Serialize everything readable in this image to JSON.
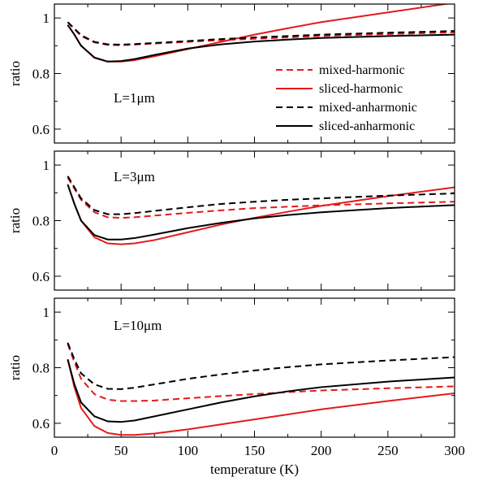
{
  "chart_data": {
    "type": "line",
    "xlabel": "temperature (K)",
    "ylabel": "ratio",
    "xlim": [
      0,
      300
    ],
    "x_ticks": [
      "0",
      "50",
      "100",
      "150",
      "200",
      "250",
      "300"
    ],
    "legend": {
      "placement": "right",
      "entries": [
        {
          "name": "mixed-harmonic",
          "color": "#e41a1c",
          "dash": true
        },
        {
          "name": "sliced-harmonic",
          "color": "#e41a1c",
          "dash": false
        },
        {
          "name": "mixed-anharmonic",
          "color": "#000000",
          "dash": true
        },
        {
          "name": "sliced-anharmonic",
          "color": "#000000",
          "dash": false
        }
      ]
    },
    "panels": [
      {
        "label": "L=1μm",
        "ylim": [
          0.55,
          1.05
        ],
        "y_ticks": [
          "0.6",
          "0.8",
          "1"
        ],
        "series": [
          {
            "name": "mixed-harmonic",
            "x": [
              10,
              15,
              20,
              30,
              40,
              50,
              60,
              75,
              100,
              125,
              150,
              175,
              200,
              250,
              300
            ],
            "y": [
              0.985,
              0.96,
              0.935,
              0.912,
              0.903,
              0.902,
              0.904,
              0.908,
              0.914,
              0.92,
              0.925,
              0.93,
              0.935,
              0.942,
              0.948
            ]
          },
          {
            "name": "sliced-harmonic",
            "x": [
              10,
              15,
              20,
              30,
              40,
              50,
              60,
              75,
              100,
              125,
              150,
              175,
              200,
              250,
              300
            ],
            "y": [
              0.975,
              0.94,
              0.9,
              0.858,
              0.843,
              0.843,
              0.848,
              0.862,
              0.888,
              0.914,
              0.94,
              0.963,
              0.985,
              1.02,
              1.055
            ]
          },
          {
            "name": "mixed-anharmonic",
            "x": [
              10,
              15,
              20,
              30,
              40,
              50,
              60,
              75,
              100,
              125,
              150,
              175,
              200,
              250,
              300
            ],
            "y": [
              0.985,
              0.962,
              0.938,
              0.914,
              0.905,
              0.904,
              0.906,
              0.91,
              0.917,
              0.924,
              0.93,
              0.935,
              0.94,
              0.947,
              0.953
            ]
          },
          {
            "name": "sliced-anharmonic",
            "x": [
              10,
              15,
              20,
              30,
              40,
              50,
              60,
              75,
              100,
              125,
              150,
              175,
              200,
              250,
              300
            ],
            "y": [
              0.975,
              0.94,
              0.9,
              0.857,
              0.843,
              0.845,
              0.852,
              0.867,
              0.89,
              0.905,
              0.915,
              0.922,
              0.928,
              0.935,
              0.94
            ]
          }
        ]
      },
      {
        "label": "L=3μm",
        "ylim": [
          0.55,
          1.05
        ],
        "y_ticks": [
          "0.6",
          "0.8",
          "1"
        ],
        "series": [
          {
            "name": "mixed-harmonic",
            "x": [
              10,
              15,
              20,
              30,
              40,
              50,
              60,
              75,
              100,
              125,
              150,
              175,
              200,
              250,
              300
            ],
            "y": [
              0.955,
              0.915,
              0.875,
              0.83,
              0.812,
              0.81,
              0.812,
              0.818,
              0.828,
              0.837,
              0.845,
              0.85,
              0.855,
              0.862,
              0.868
            ]
          },
          {
            "name": "sliced-harmonic",
            "x": [
              10,
              15,
              20,
              30,
              40,
              50,
              60,
              75,
              100,
              125,
              150,
              175,
              200,
              250,
              300
            ],
            "y": [
              0.93,
              0.86,
              0.8,
              0.74,
              0.718,
              0.715,
              0.718,
              0.73,
              0.758,
              0.786,
              0.81,
              0.832,
              0.853,
              0.888,
              0.92
            ]
          },
          {
            "name": "mixed-anharmonic",
            "x": [
              10,
              15,
              20,
              30,
              40,
              50,
              60,
              75,
              100,
              125,
              150,
              175,
              200,
              250,
              300
            ],
            "y": [
              0.96,
              0.92,
              0.88,
              0.838,
              0.823,
              0.823,
              0.827,
              0.835,
              0.848,
              0.86,
              0.868,
              0.875,
              0.88,
              0.89,
              0.898
            ]
          },
          {
            "name": "sliced-anharmonic",
            "x": [
              10,
              15,
              20,
              30,
              40,
              50,
              60,
              75,
              100,
              125,
              150,
              175,
              200,
              250,
              300
            ],
            "y": [
              0.93,
              0.86,
              0.8,
              0.748,
              0.732,
              0.732,
              0.737,
              0.75,
              0.773,
              0.792,
              0.808,
              0.82,
              0.83,
              0.845,
              0.856
            ]
          }
        ]
      },
      {
        "label": "L=10μm",
        "ylim": [
          0.55,
          1.05
        ],
        "y_ticks": [
          "0.6",
          "0.8",
          "1"
        ],
        "series": [
          {
            "name": "mixed-harmonic",
            "x": [
              10,
              15,
              20,
              30,
              40,
              50,
              60,
              75,
              100,
              125,
              150,
              175,
              200,
              250,
              300
            ],
            "y": [
              0.885,
              0.82,
              0.76,
              0.705,
              0.685,
              0.68,
              0.68,
              0.682,
              0.69,
              0.698,
              0.705,
              0.712,
              0.718,
              0.726,
              0.733
            ]
          },
          {
            "name": "sliced-harmonic",
            "x": [
              10,
              15,
              20,
              30,
              40,
              50,
              60,
              75,
              100,
              125,
              150,
              175,
              200,
              250,
              300
            ],
            "y": [
              0.83,
              0.73,
              0.655,
              0.59,
              0.565,
              0.558,
              0.558,
              0.563,
              0.578,
              0.596,
              0.614,
              0.632,
              0.65,
              0.68,
              0.708
            ]
          },
          {
            "name": "mixed-anharmonic",
            "x": [
              10,
              15,
              20,
              30,
              40,
              50,
              60,
              75,
              100,
              125,
              150,
              175,
              200,
              250,
              300
            ],
            "y": [
              0.89,
              0.83,
              0.78,
              0.74,
              0.724,
              0.723,
              0.728,
              0.74,
              0.76,
              0.776,
              0.79,
              0.802,
              0.812,
              0.826,
              0.838
            ]
          },
          {
            "name": "sliced-anharmonic",
            "x": [
              10,
              15,
              20,
              30,
              40,
              50,
              60,
              75,
              100,
              125,
              150,
              175,
              200,
              250,
              300
            ],
            "y": [
              0.83,
              0.74,
              0.675,
              0.625,
              0.607,
              0.605,
              0.61,
              0.625,
              0.65,
              0.675,
              0.697,
              0.715,
              0.73,
              0.75,
              0.765
            ]
          }
        ]
      }
    ]
  }
}
